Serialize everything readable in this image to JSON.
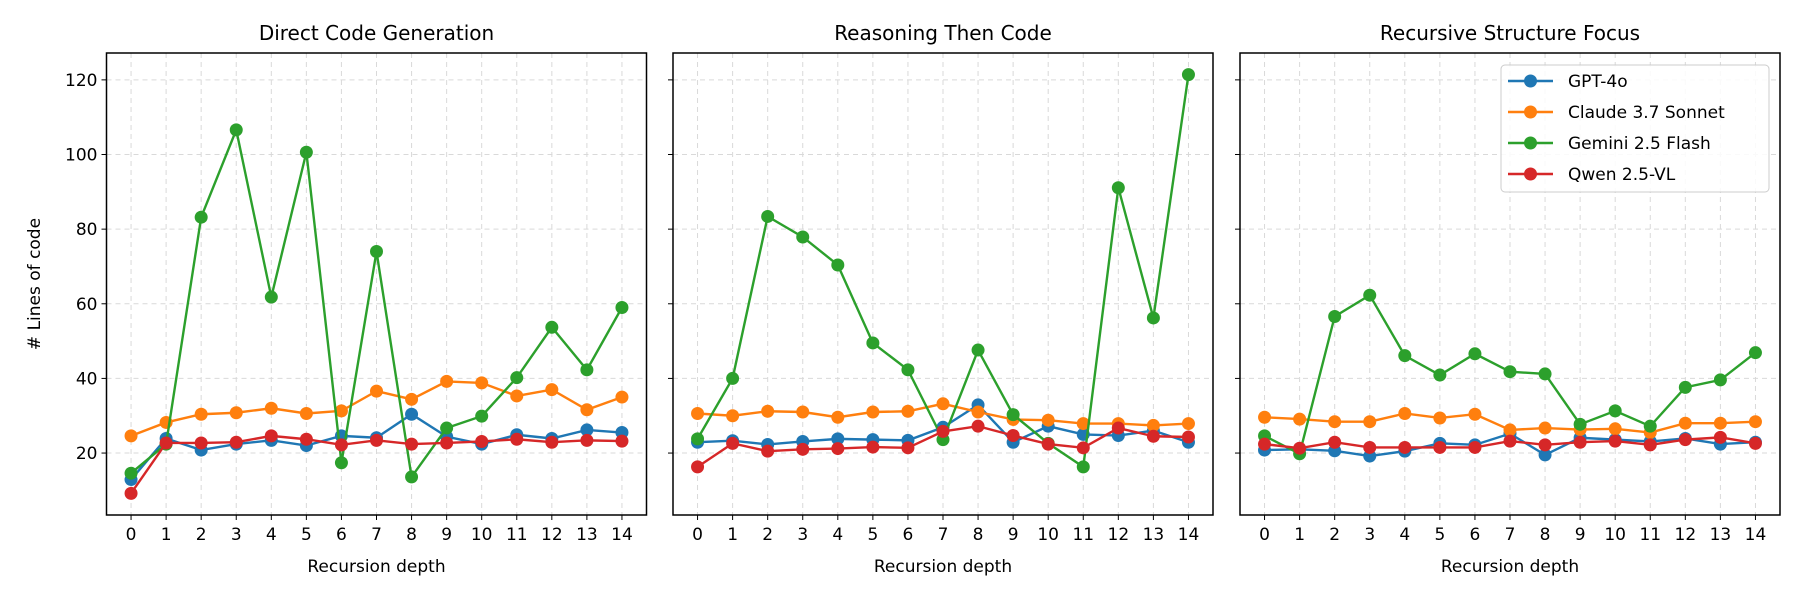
{
  "chart_data": [
    {
      "type": "line",
      "title": "Direct Code Generation",
      "xlabel": "Recursion depth",
      "ylabel": "# Lines of code",
      "x": [
        0,
        1,
        2,
        3,
        4,
        5,
        6,
        7,
        8,
        9,
        10,
        11,
        12,
        13,
        14
      ],
      "xlim": [
        -0.7,
        14.7
      ],
      "ylim": [
        3.4,
        127.2
      ],
      "yticks": [
        20,
        40,
        60,
        80,
        100,
        120
      ],
      "grid": true,
      "series": [
        {
          "name": "GPT-4o",
          "color": "#1f77b4",
          "values": [
            12.9,
            23.9,
            20.8,
            22.4,
            23.4,
            22.0,
            24.6,
            24.1,
            30.4,
            24.4,
            22.4,
            24.9,
            23.9,
            26.2,
            25.5
          ]
        },
        {
          "name": "Claude 3.7 Sonnet",
          "color": "#ff7f0e",
          "values": [
            24.6,
            28.2,
            30.4,
            30.8,
            32.0,
            30.6,
            31.3,
            36.6,
            34.4,
            39.2,
            38.8,
            35.3,
            37.0,
            31.6,
            35.0
          ]
        },
        {
          "name": "Gemini 2.5 Flash",
          "color": "#2ca02c",
          "values": [
            14.6,
            22.4,
            83.2,
            106.6,
            61.8,
            100.6,
            17.4,
            74.0,
            13.6,
            26.7,
            29.9,
            40.2,
            53.7,
            42.3,
            59.0
          ]
        },
        {
          "name": "Qwen 2.5-VL",
          "color": "#d62728",
          "values": [
            9.2,
            22.7,
            22.7,
            22.9,
            24.6,
            23.7,
            22.2,
            23.4,
            22.4,
            22.7,
            23.1,
            23.7,
            22.9,
            23.4,
            23.2
          ]
        }
      ]
    },
    {
      "type": "line",
      "title": "Reasoning Then Code",
      "xlabel": "Recursion depth",
      "x": [
        0,
        1,
        2,
        3,
        4,
        5,
        6,
        7,
        8,
        9,
        10,
        11,
        12,
        13,
        14
      ],
      "xlim": [
        -0.7,
        14.7
      ],
      "ylim": [
        3.4,
        127.2
      ],
      "grid": true,
      "series": [
        {
          "name": "GPT-4o",
          "color": "#1f77b4",
          "values": [
            22.9,
            23.3,
            22.3,
            23.1,
            23.8,
            23.6,
            23.4,
            26.9,
            32.9,
            22.9,
            27.2,
            25.0,
            24.7,
            26.0,
            22.9
          ]
        },
        {
          "name": "Claude 3.7 Sonnet",
          "color": "#ff7f0e",
          "values": [
            30.6,
            30.0,
            31.2,
            31.0,
            29.6,
            31.0,
            31.2,
            33.2,
            31.0,
            29.0,
            28.8,
            27.9,
            27.9,
            27.4,
            27.9
          ]
        },
        {
          "name": "Gemini 2.5 Flash",
          "color": "#2ca02c",
          "values": [
            23.8,
            40.0,
            83.4,
            77.9,
            70.4,
            49.5,
            42.3,
            23.6,
            47.6,
            30.3,
            22.6,
            16.3,
            91.1,
            56.2,
            121.4
          ]
        },
        {
          "name": "Qwen 2.5-VL",
          "color": "#d62728",
          "values": [
            16.3,
            22.6,
            20.5,
            21.0,
            21.2,
            21.6,
            21.4,
            25.8,
            27.2,
            24.7,
            22.4,
            21.4,
            26.7,
            24.5,
            24.3
          ]
        }
      ]
    },
    {
      "type": "line",
      "title": "Recursive Structure Focus",
      "xlabel": "Recursion depth",
      "x": [
        0,
        1,
        2,
        3,
        4,
        5,
        6,
        7,
        8,
        9,
        10,
        11,
        12,
        13,
        14
      ],
      "xlim": [
        -0.7,
        14.7
      ],
      "ylim": [
        3.4,
        127.2
      ],
      "grid": true,
      "legend": "top-right",
      "series": [
        {
          "name": "GPT-4o",
          "color": "#1f77b4",
          "values": [
            20.8,
            21.0,
            20.6,
            19.2,
            20.5,
            22.6,
            22.2,
            25.2,
            19.5,
            24.1,
            23.6,
            23.1,
            23.9,
            22.4,
            22.9
          ]
        },
        {
          "name": "Claude 3.7 Sonnet",
          "color": "#ff7f0e",
          "values": [
            29.6,
            29.1,
            28.4,
            28.4,
            30.6,
            29.4,
            30.4,
            26.2,
            26.7,
            26.3,
            26.5,
            25.5,
            28.0,
            28.0,
            28.4
          ]
        },
        {
          "name": "Gemini 2.5 Flash",
          "color": "#2ca02c",
          "values": [
            24.6,
            19.8,
            56.6,
            62.3,
            46.1,
            40.9,
            46.6,
            41.8,
            41.2,
            27.7,
            31.3,
            27.2,
            37.6,
            39.6,
            46.9
          ]
        },
        {
          "name": "Qwen 2.5-VL",
          "color": "#d62728",
          "values": [
            22.4,
            21.3,
            22.9,
            21.5,
            21.5,
            21.5,
            21.5,
            23.2,
            22.2,
            22.9,
            23.2,
            22.2,
            23.6,
            24.2,
            22.6
          ]
        }
      ]
    }
  ]
}
